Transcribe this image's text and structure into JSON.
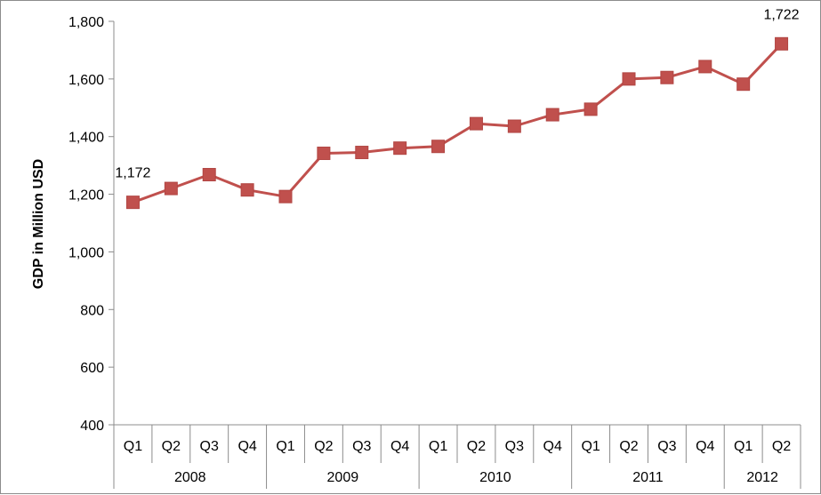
{
  "chart_data": {
    "type": "line",
    "title": "",
    "xlabel": "",
    "ylabel": "GDP in Million USD",
    "ylim": [
      400,
      1800
    ],
    "yticks": [
      "400",
      "600",
      "800",
      "1,000",
      "1,200",
      "1,400",
      "1,600",
      "1,800"
    ],
    "ytick_values": [
      400,
      600,
      800,
      1000,
      1200,
      1400,
      1600,
      1800
    ],
    "grid": false,
    "legend": "none",
    "colors": {
      "series": "#c0504d",
      "axis": "#8c8c8c"
    },
    "x": [
      "Q1",
      "Q2",
      "Q3",
      "Q4",
      "Q1",
      "Q2",
      "Q3",
      "Q4",
      "Q1",
      "Q2",
      "Q3",
      "Q4",
      "Q1",
      "Q2",
      "Q3",
      "Q4",
      "Q1",
      "Q2"
    ],
    "groups": [
      {
        "label": "2008",
        "count": 4
      },
      {
        "label": "2009",
        "count": 4
      },
      {
        "label": "2010",
        "count": 4
      },
      {
        "label": "2011",
        "count": 4
      },
      {
        "label": "2012",
        "count": 2
      }
    ],
    "series": [
      {
        "values": [
          1172,
          1220,
          1268,
          1215,
          1192,
          1342,
          1345,
          1360,
          1366,
          1445,
          1436,
          1476,
          1495,
          1600,
          1605,
          1643,
          1582,
          1722
        ]
      }
    ],
    "data_labels": [
      {
        "index": 0,
        "text": "1,172"
      },
      {
        "index": 17,
        "text": "1,722"
      }
    ]
  }
}
